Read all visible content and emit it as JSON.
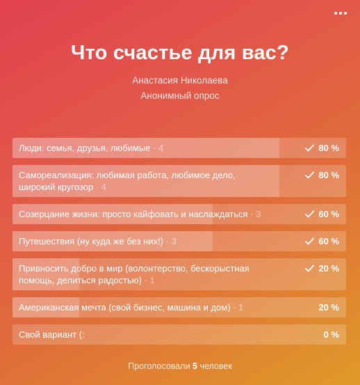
{
  "poll": {
    "title": "Что счастье для вас?",
    "author": "Анастасия Николаева",
    "type_label": "Анонимный опрос",
    "footer": {
      "prefix": "Проголосовали",
      "count": "5",
      "suffix": "человек"
    },
    "options": [
      {
        "text": "Люди: семья, друзья, любимые",
        "votes": "4",
        "percent": "80 %",
        "fraction": 0.8,
        "checked": true
      },
      {
        "text": "Самореализация: любимая работа, любимое дело, широкий кругозор",
        "votes": "4",
        "percent": "80 %",
        "fraction": 0.8,
        "checked": true
      },
      {
        "text": "Созерцание жизни: просто кайфовать и наслаждаться",
        "votes": "3",
        "percent": "60 %",
        "fraction": 0.6,
        "checked": true
      },
      {
        "text": "Путешествия (ну куда же без них!)",
        "votes": "3",
        "percent": "60 %",
        "fraction": 0.6,
        "checked": true
      },
      {
        "text": "Привносить добро в мир (волонтерство, бескорыстная помощь, делиться радостью)",
        "votes": "1",
        "percent": "20 %",
        "fraction": 0.2,
        "checked": true
      },
      {
        "text": "Американская мечта (свой бизнес, машина и дом)",
        "votes": "1",
        "percent": "20 %",
        "fraction": 0.2,
        "checked": false
      },
      {
        "text": "Свой вариант (:",
        "votes": "",
        "percent": "0 %",
        "fraction": 0,
        "checked": false
      }
    ]
  },
  "icons": {
    "menu": "more-dots-icon",
    "check": "check-icon"
  }
}
